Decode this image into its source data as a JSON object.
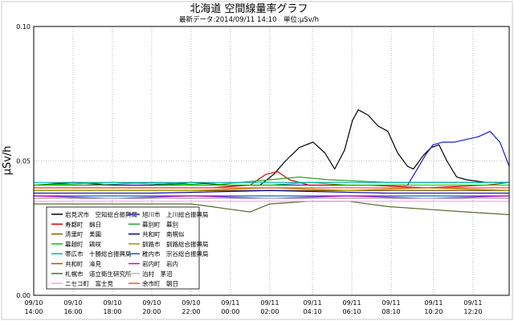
{
  "chart_data": {
    "type": "line",
    "title": "北海道 空間線量率グラフ",
    "subtitle": "最新データ:2014/09/11 14:10　単位:μSv/h",
    "ylabel": "μSv/h",
    "ylim": [
      0.0,
      0.1
    ],
    "yticks": [
      "0.00",
      "0.05",
      "0.10"
    ],
    "grid": true,
    "legend_position": "bottom-left",
    "x_ticks": [
      {
        "date": "09/10",
        "time": "14:00"
      },
      {
        "date": "09/10",
        "time": "16:00"
      },
      {
        "date": "09/10",
        "time": "18:00"
      },
      {
        "date": "09/10",
        "time": "20:00"
      },
      {
        "date": "09/10",
        "time": "22:00"
      },
      {
        "date": "09/11",
        "time": "00:00"
      },
      {
        "date": "09/11",
        "time": "02:00"
      },
      {
        "date": "09/11",
        "time": "04:10"
      },
      {
        "date": "09/11",
        "time": "06:10"
      },
      {
        "date": "09/11",
        "time": "08:10"
      },
      {
        "date": "09/11",
        "time": "10:20"
      },
      {
        "date": "09/11",
        "time": "12:20"
      }
    ],
    "x_hours": [
      0,
      2,
      4,
      6,
      8,
      10,
      12,
      14.17,
      16.17,
      18.17,
      20.33,
      22.33
    ],
    "x_range": [
      0,
      24.17
    ],
    "series": [
      {
        "name": "岩見沢市　空知総合振興局",
        "color": "#000000",
        "points": [
          [
            0,
            0.041
          ],
          [
            2,
            0.042
          ],
          [
            4,
            0.041
          ],
          [
            6,
            0.041
          ],
          [
            8,
            0.042
          ],
          [
            10,
            0.041
          ],
          [
            11.5,
            0.041
          ],
          [
            12.2,
            0.045
          ],
          [
            12.8,
            0.05
          ],
          [
            13.5,
            0.055
          ],
          [
            14.2,
            0.057
          ],
          [
            14.8,
            0.053
          ],
          [
            15.3,
            0.047
          ],
          [
            15.8,
            0.054
          ],
          [
            16.2,
            0.065
          ],
          [
            16.5,
            0.069
          ],
          [
            17,
            0.067
          ],
          [
            17.5,
            0.063
          ],
          [
            18,
            0.061
          ],
          [
            18.5,
            0.053
          ],
          [
            19,
            0.048
          ],
          [
            19.3,
            0.047
          ],
          [
            19.8,
            0.052
          ],
          [
            20.2,
            0.055
          ],
          [
            20.6,
            0.056
          ],
          [
            21,
            0.05
          ],
          [
            21.5,
            0.044
          ],
          [
            22,
            0.043
          ],
          [
            23,
            0.042
          ],
          [
            24.17,
            0.042
          ]
        ]
      },
      {
        "name": "旭川市　上川総合振興局",
        "color": "#1a1acc",
        "points": [
          [
            0,
            0.041
          ],
          [
            4,
            0.041
          ],
          [
            8,
            0.041
          ],
          [
            12,
            0.041
          ],
          [
            16,
            0.041
          ],
          [
            19,
            0.041
          ],
          [
            19.5,
            0.047
          ],
          [
            19.9,
            0.052
          ],
          [
            20.3,
            0.056
          ],
          [
            20.8,
            0.057
          ],
          [
            21.4,
            0.057
          ],
          [
            22,
            0.058
          ],
          [
            22.6,
            0.059
          ],
          [
            23.2,
            0.061
          ],
          [
            23.7,
            0.057
          ],
          [
            24.17,
            0.048
          ]
        ]
      },
      {
        "name": "寿都町　錦日",
        "color": "#e00000",
        "points": [
          [
            0,
            0.04
          ],
          [
            3,
            0.04
          ],
          [
            6,
            0.04
          ],
          [
            9,
            0.04
          ],
          [
            11,
            0.041
          ],
          [
            11.8,
            0.045
          ],
          [
            12.4,
            0.046
          ],
          [
            13,
            0.043
          ],
          [
            14,
            0.041
          ],
          [
            17,
            0.041
          ],
          [
            20,
            0.04
          ],
          [
            23,
            0.041
          ],
          [
            24.17,
            0.042
          ]
        ]
      },
      {
        "name": "幕別町　幕別",
        "color": "#2aa02a",
        "points": [
          [
            0,
            0.041
          ],
          [
            3,
            0.041
          ],
          [
            6,
            0.042
          ],
          [
            9,
            0.041
          ],
          [
            12,
            0.043
          ],
          [
            13.5,
            0.044
          ],
          [
            15,
            0.043
          ],
          [
            18,
            0.042
          ],
          [
            21,
            0.042
          ],
          [
            24.17,
            0.042
          ]
        ]
      },
      {
        "name": "清里町　美園",
        "color": "#8a5a00",
        "points": [
          [
            0,
            0.039
          ],
          [
            4,
            0.039
          ],
          [
            8,
            0.039
          ],
          [
            12,
            0.039
          ],
          [
            16,
            0.039
          ],
          [
            20,
            0.039
          ],
          [
            24.17,
            0.039
          ]
        ]
      },
      {
        "name": "共和町　南幌似",
        "color": "#0000aa",
        "points": [
          [
            0,
            0.038
          ],
          [
            6,
            0.038
          ],
          [
            12,
            0.039
          ],
          [
            18,
            0.038
          ],
          [
            24.17,
            0.038
          ]
        ]
      },
      {
        "name": "幕越町　鶏咲",
        "color": "#00cc00",
        "points": [
          [
            0,
            0.041
          ],
          [
            4,
            0.042
          ],
          [
            8,
            0.041
          ],
          [
            12,
            0.041
          ],
          [
            14,
            0.042
          ],
          [
            16,
            0.041
          ],
          [
            20,
            0.041
          ],
          [
            24.17,
            0.041
          ]
        ]
      },
      {
        "name": "釧路市　釧路総合振興局",
        "color": "#9b9b00",
        "points": [
          [
            0,
            0.039
          ],
          [
            4,
            0.039
          ],
          [
            8,
            0.039
          ],
          [
            12,
            0.04
          ],
          [
            16,
            0.039
          ],
          [
            20,
            0.04
          ],
          [
            24.17,
            0.039
          ]
        ]
      },
      {
        "name": "帯広市　十勝総合振興局",
        "color": "#00b3b3",
        "points": [
          [
            0,
            0.042
          ],
          [
            4,
            0.042
          ],
          [
            8,
            0.042
          ],
          [
            12,
            0.042
          ],
          [
            16,
            0.042
          ],
          [
            20,
            0.042
          ],
          [
            24.17,
            0.042
          ]
        ]
      },
      {
        "name": "稚内市　宗谷総合振興局",
        "color": "#0060c0",
        "points": [
          [
            0,
            0.037
          ],
          [
            6,
            0.037
          ],
          [
            12,
            0.037
          ],
          [
            18,
            0.037
          ],
          [
            24.17,
            0.037
          ]
        ]
      },
      {
        "name": "共和町　滝見",
        "color": "#d04000",
        "points": [
          [
            0,
            0.036
          ],
          [
            6,
            0.036
          ],
          [
            12,
            0.036
          ],
          [
            18,
            0.036
          ],
          [
            24.17,
            0.036
          ]
        ]
      },
      {
        "name": "岩内町　岩内",
        "color": "#cc00cc",
        "points": [
          [
            0,
            0.037
          ],
          [
            4,
            0.036
          ],
          [
            8,
            0.037
          ],
          [
            12,
            0.036
          ],
          [
            16,
            0.037
          ],
          [
            20,
            0.036
          ],
          [
            24.17,
            0.037
          ]
        ]
      },
      {
        "name": "札幌市　道立衛生研究所",
        "color": "#556b2f",
        "points": [
          [
            0,
            0.034
          ],
          [
            3,
            0.034
          ],
          [
            6,
            0.034
          ],
          [
            8,
            0.034
          ],
          [
            9,
            0.033
          ],
          [
            10,
            0.032
          ],
          [
            11,
            0.031
          ],
          [
            12,
            0.034
          ],
          [
            14,
            0.035
          ],
          [
            16,
            0.035
          ],
          [
            18,
            0.033
          ],
          [
            20,
            0.032
          ],
          [
            22,
            0.031
          ],
          [
            24.17,
            0.03
          ]
        ]
      },
      {
        "name": "泊村　茅沼",
        "color": "#bbbbbb",
        "points": [
          [
            0,
            0.036
          ],
          [
            6,
            0.036
          ],
          [
            12,
            0.036
          ],
          [
            18,
            0.036
          ],
          [
            24.17,
            0.036
          ]
        ]
      },
      {
        "name": "ニセコ町　富士見",
        "color": "#ff99ff",
        "points": [
          [
            0,
            0.035
          ],
          [
            6,
            0.035
          ],
          [
            12,
            0.035
          ],
          [
            18,
            0.035
          ],
          [
            24.17,
            0.035
          ]
        ]
      },
      {
        "name": "余市町　朝日",
        "color": "#ff5522",
        "points": [
          [
            0,
            0.04
          ],
          [
            6,
            0.04
          ],
          [
            12,
            0.04
          ],
          [
            18,
            0.04
          ],
          [
            24.17,
            0.04
          ]
        ]
      }
    ]
  }
}
